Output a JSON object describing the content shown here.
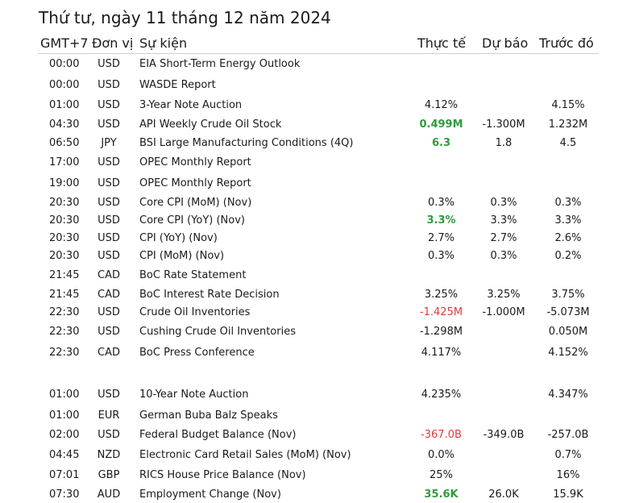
{
  "title": "Thứ tư, ngày 11 tháng 12 năm 2024",
  "columns": {
    "time": "GMT+7",
    "currency": "Đơn vị",
    "event": "Sự kiện",
    "actual": "Thực tế",
    "forecast": "Dự báo",
    "previous": "Trước đó"
  },
  "colors": {
    "positive": "#2e9c3c",
    "negative": "#e03a3a",
    "text": "#1a1a1a"
  },
  "rows": [
    {
      "time": "00:00",
      "currency": "USD",
      "event": "EIA Short-Term Energy Outlook",
      "actual": "",
      "forecast": "",
      "previous": "",
      "actual_style": ""
    },
    {
      "time": "00:00",
      "currency": "USD",
      "event": "WASDE Report",
      "actual": "",
      "forecast": "",
      "previous": "",
      "actual_style": ""
    },
    {
      "time": "01:00",
      "currency": "USD",
      "event": "3-Year Note Auction",
      "actual": "4.12%",
      "forecast": "",
      "previous": "4.15%",
      "actual_style": ""
    },
    {
      "time": "04:30",
      "currency": "USD",
      "event": "API Weekly Crude Oil Stock",
      "actual": "0.499M",
      "forecast": "-1.300M",
      "previous": "1.232M",
      "actual_style": "green"
    },
    {
      "time": "06:50",
      "currency": "JPY",
      "event": "BSI Large Manufacturing Conditions (4Q)",
      "actual": "6.3",
      "forecast": "1.8",
      "previous": "4.5",
      "actual_style": "green"
    },
    {
      "time": "17:00",
      "currency": "USD",
      "event": "OPEC Monthly Report",
      "actual": "",
      "forecast": "",
      "previous": "",
      "actual_style": ""
    },
    {
      "time": "19:00",
      "currency": "USD",
      "event": "OPEC Monthly Report",
      "actual": "",
      "forecast": "",
      "previous": "",
      "actual_style": ""
    },
    {
      "time": "20:30",
      "currency": "USD",
      "event": "Core CPI (MoM) (Nov)",
      "actual": "0.3%",
      "forecast": "0.3%",
      "previous": "0.3%",
      "actual_style": ""
    },
    {
      "time": "20:30",
      "currency": "USD",
      "event": "Core CPI (YoY) (Nov)",
      "actual": "3.3%",
      "forecast": "3.3%",
      "previous": "3.3%",
      "actual_style": "green"
    },
    {
      "time": "20:30",
      "currency": "USD",
      "event": "CPI (YoY) (Nov)",
      "actual": "2.7%",
      "forecast": "2.7%",
      "previous": "2.6%",
      "actual_style": ""
    },
    {
      "time": "20:30",
      "currency": "USD",
      "event": "CPI (MoM) (Nov)",
      "actual": "0.3%",
      "forecast": "0.3%",
      "previous": "0.2%",
      "actual_style": ""
    },
    {
      "time": "21:45",
      "currency": "CAD",
      "event": "BoC Rate Statement",
      "actual": "",
      "forecast": "",
      "previous": "",
      "actual_style": ""
    },
    {
      "time": "21:45",
      "currency": "CAD",
      "event": "BoC Interest Rate Decision",
      "actual": "3.25%",
      "forecast": "3.25%",
      "previous": "3.75%",
      "actual_style": ""
    },
    {
      "time": "22:30",
      "currency": "USD",
      "event": "Crude Oil Inventories",
      "actual": "-1.425M",
      "forecast": "-1.000M",
      "previous": "-5.073M",
      "actual_style": "red"
    },
    {
      "time": "22:30",
      "currency": "USD",
      "event": "Cushing Crude Oil Inventories",
      "actual": "-1.298M",
      "forecast": "",
      "previous": "0.050M",
      "actual_style": ""
    },
    {
      "time": "22:30",
      "currency": "CAD",
      "event": "BoC Press Conference",
      "actual": "4.117%",
      "forecast": "",
      "previous": "4.152%",
      "actual_style": ""
    },
    {
      "time": "01:00",
      "currency": "USD",
      "event": "10-Year Note Auction",
      "actual": "4.235%",
      "forecast": "",
      "previous": "4.347%",
      "actual_style": ""
    },
    {
      "time": "01:00",
      "currency": "EUR",
      "event": "German Buba Balz Speaks",
      "actual": "",
      "forecast": "",
      "previous": "",
      "actual_style": ""
    },
    {
      "time": "02:00",
      "currency": "USD",
      "event": "Federal Budget Balance (Nov)",
      "actual": "-367.0B",
      "forecast": "-349.0B",
      "previous": "-257.0B",
      "actual_style": "red"
    },
    {
      "time": "04:45",
      "currency": "NZD",
      "event": "Electronic Card Retail Sales (MoM) (Nov)",
      "actual": "0.0%",
      "forecast": "",
      "previous": "0.7%",
      "actual_style": ""
    },
    {
      "time": "07:01",
      "currency": "GBP",
      "event": "RICS House Price Balance (Nov)",
      "actual": "25%",
      "forecast": "",
      "previous": "16%",
      "actual_style": ""
    },
    {
      "time": "07:30",
      "currency": "AUD",
      "event": "Employment Change (Nov)",
      "actual": "35.6K",
      "forecast": "26.0K",
      "previous": "15.9K",
      "actual_style": "green"
    }
  ]
}
